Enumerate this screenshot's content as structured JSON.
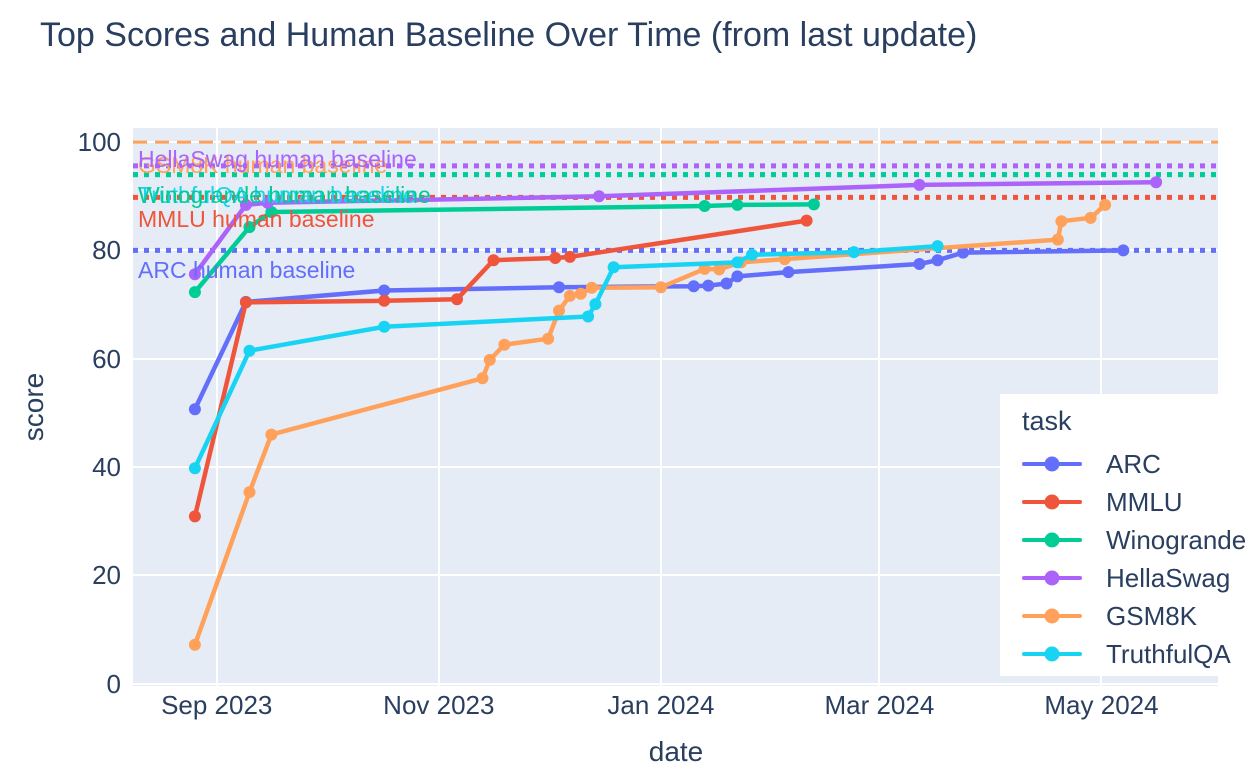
{
  "title": "Top Scores and Human Baseline Over Time (from last update)",
  "legend": {
    "title": "task"
  },
  "colors": {
    "background": "#ffffff",
    "plot_background": "#e5ecf6",
    "gridline": "#ffffff",
    "text": "#2a3f5f"
  },
  "chart_data": {
    "type": "line",
    "title": "Top Scores and Human Baseline Over Time (from last update)",
    "xlabel": "date",
    "ylabel": "score",
    "x_domain": [
      "2023-08-09",
      "2024-06-02"
    ],
    "y_range": [
      -0.4,
      102.6
    ],
    "grid": true,
    "legend_position": "bottom-right",
    "x_ticks": [
      {
        "date": "2023-09-01",
        "label": "Sep 2023"
      },
      {
        "date": "2023-11-01",
        "label": "Nov 2023"
      },
      {
        "date": "2024-01-01",
        "label": "Jan 2024"
      },
      {
        "date": "2024-03-01",
        "label": "Mar 2024"
      },
      {
        "date": "2024-05-01",
        "label": "May 2024"
      }
    ],
    "y_ticks": [
      {
        "value": 0,
        "label": "0"
      },
      {
        "value": 20,
        "label": "20"
      },
      {
        "value": 40,
        "label": "40"
      },
      {
        "value": 60,
        "label": "60"
      },
      {
        "value": 80,
        "label": "80"
      },
      {
        "value": 100,
        "label": "100"
      }
    ],
    "series": [
      {
        "name": "ARC",
        "color": "#636efa",
        "points": [
          [
            "2023-08-26",
            50.7
          ],
          [
            "2023-09-09",
            70.5
          ],
          [
            "2023-10-17",
            72.6
          ],
          [
            "2023-12-04",
            73.2
          ],
          [
            "2024-01-10",
            73.4
          ],
          [
            "2024-01-14",
            73.5
          ],
          [
            "2024-01-19",
            73.9
          ],
          [
            "2024-01-22",
            75.2
          ],
          [
            "2024-02-05",
            76.0
          ],
          [
            "2024-03-12",
            77.5
          ],
          [
            "2024-03-17",
            78.2
          ],
          [
            "2024-03-24",
            79.6
          ],
          [
            "2024-05-07",
            80.0
          ]
        ]
      },
      {
        "name": "MMLU",
        "color": "#ef553b",
        "points": [
          [
            "2023-08-26",
            30.9
          ],
          [
            "2023-09-09",
            70.4
          ],
          [
            "2023-10-17",
            70.7
          ],
          [
            "2023-11-06",
            71.0
          ],
          [
            "2023-11-16",
            78.2
          ],
          [
            "2023-12-03",
            78.6
          ],
          [
            "2023-12-07",
            78.8
          ],
          [
            "2024-02-10",
            85.5
          ]
        ]
      },
      {
        "name": "Winogrande",
        "color": "#00cc96",
        "points": [
          [
            "2023-08-26",
            72.3
          ],
          [
            "2023-09-10",
            84.3
          ],
          [
            "2023-09-16",
            87.1
          ],
          [
            "2024-01-13",
            88.2
          ],
          [
            "2024-01-22",
            88.4
          ],
          [
            "2024-02-12",
            88.5
          ]
        ]
      },
      {
        "name": "HellaSwag",
        "color": "#ab63fa",
        "points": [
          [
            "2023-08-26",
            75.6
          ],
          [
            "2023-09-09",
            88.4
          ],
          [
            "2023-09-15",
            88.8
          ],
          [
            "2023-12-15",
            90.0
          ],
          [
            "2024-03-12",
            92.1
          ],
          [
            "2024-05-16",
            92.6
          ]
        ]
      },
      {
        "name": "GSM8K",
        "color": "#ffa15a",
        "points": [
          [
            "2023-08-26",
            7.2
          ],
          [
            "2023-09-10",
            35.4
          ],
          [
            "2023-09-16",
            46.0
          ],
          [
            "2023-11-13",
            56.4
          ],
          [
            "2023-11-15",
            59.8
          ],
          [
            "2023-11-19",
            62.6
          ],
          [
            "2023-12-01",
            63.7
          ],
          [
            "2023-12-04",
            68.9
          ],
          [
            "2023-12-07",
            71.6
          ],
          [
            "2023-12-10",
            72.0
          ],
          [
            "2023-12-13",
            73.1
          ],
          [
            "2024-01-01",
            73.2
          ],
          [
            "2024-01-13",
            76.6
          ],
          [
            "2024-01-17",
            76.5
          ],
          [
            "2024-01-23",
            77.8
          ],
          [
            "2024-02-04",
            78.4
          ],
          [
            "2024-04-19",
            82.0
          ],
          [
            "2024-04-20",
            85.4
          ],
          [
            "2024-04-28",
            86.0
          ],
          [
            "2024-05-02",
            88.4
          ]
        ]
      },
      {
        "name": "TruthfulQA",
        "color": "#19d3f3",
        "points": [
          [
            "2023-08-26",
            39.8
          ],
          [
            "2023-09-10",
            61.5
          ],
          [
            "2023-10-17",
            65.9
          ],
          [
            "2023-12-12",
            67.8
          ],
          [
            "2023-12-14",
            70.1
          ],
          [
            "2023-12-19",
            76.9
          ],
          [
            "2024-01-22",
            77.8
          ],
          [
            "2024-01-26",
            79.2
          ],
          [
            "2024-02-23",
            79.7
          ],
          [
            "2024-03-17",
            80.8
          ]
        ]
      }
    ],
    "baselines": [
      {
        "name": "GSM8K human baseline",
        "value": 100,
        "color": "#ffa15a",
        "dash": "dash",
        "label_dy": 10
      },
      {
        "name": "HellaSwag human baseline",
        "value": 95.6,
        "color": "#ab63fa",
        "dash": "dot",
        "label_dy": -20
      },
      {
        "name": "TruthfulQA human baseline",
        "value": 94,
        "color": "#19d3f3",
        "dash": "dot",
        "label_dy": 7
      },
      {
        "name": "Winogrande human baseline",
        "value": 94,
        "color": "#00cc96",
        "dash": "dot",
        "label_dy": 7
      },
      {
        "name": "MMLU human baseline",
        "value": 89.8,
        "color": "#ef553b",
        "dash": "dot",
        "label_dy": 9
      },
      {
        "name": "ARC human baseline",
        "value": 80,
        "color": "#636efa",
        "dash": "dot",
        "label_dy": 7
      }
    ]
  }
}
